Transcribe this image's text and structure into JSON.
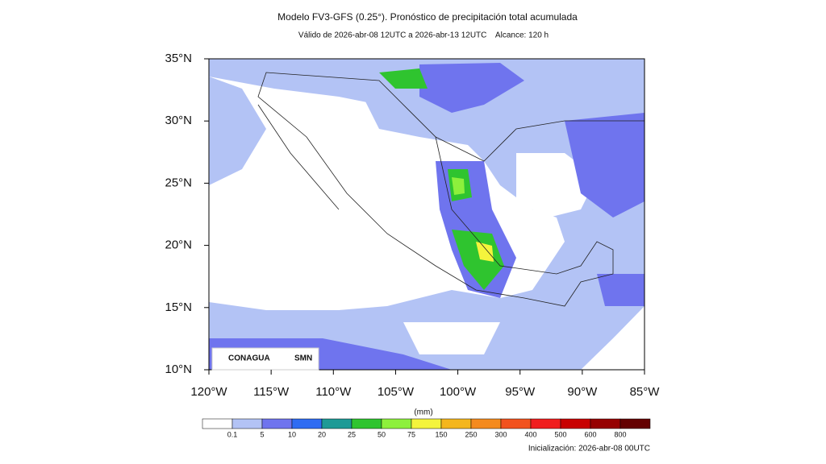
{
  "header": {
    "title": "Modelo FV3-GFS (0.25°). Pronóstico de precipitación total acumulada",
    "subtitle": "Válido de 2026-abr-08 12UTC a 2026-abr-13 12UTC    Alcance: 120 h"
  },
  "map": {
    "lat_labels": [
      "35°N",
      "30°N",
      "25°N",
      "20°N",
      "15°N",
      "10°N"
    ],
    "lon_labels": [
      "120°W",
      "115°W",
      "110°W",
      "105°W",
      "100°W",
      "95°W",
      "90°W",
      "85°W"
    ],
    "logos": [
      "CONAGUA",
      "SMN"
    ]
  },
  "colorbar": {
    "unit": "(mm)",
    "labels": [
      "0.1",
      "5",
      "10",
      "20",
      "25",
      "50",
      "75",
      "150",
      "250",
      "300",
      "400",
      "500",
      "600",
      "800"
    ],
    "colors": [
      "#ffffff",
      "#b3c3f5",
      "#6f74ee",
      "#2f6cf2",
      "#1e9a96",
      "#2fc42f",
      "#8df03c",
      "#f4f43c",
      "#f4b61e",
      "#f48a1e",
      "#f2521e",
      "#f01e1e",
      "#c80000",
      "#960000",
      "#640000"
    ]
  },
  "footer": {
    "init": "Inicialización: 2026-abr-08 00UTC"
  }
}
